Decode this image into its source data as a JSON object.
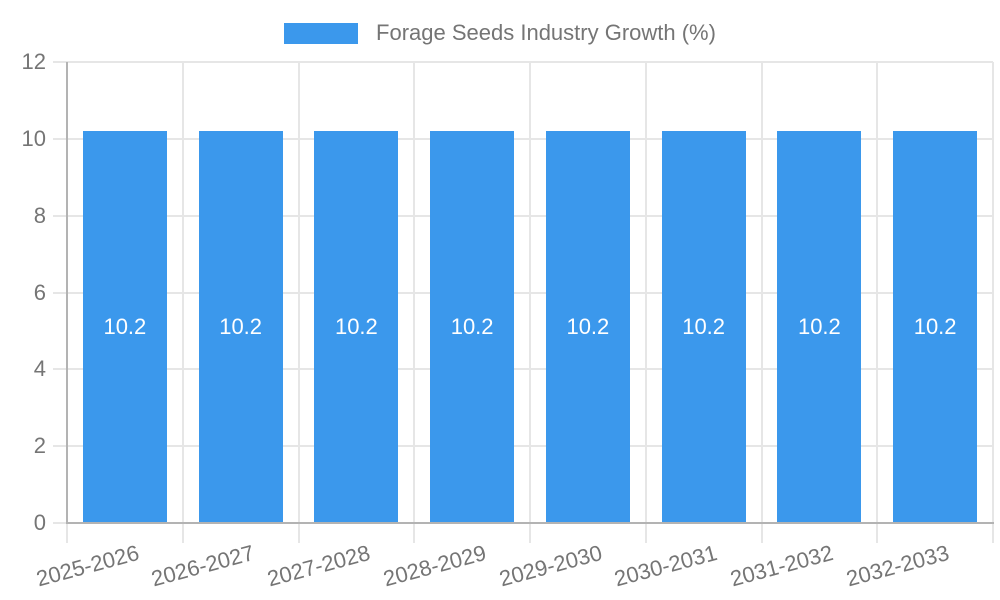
{
  "legend": {
    "label": "Forage Seeds Industry Growth (%)"
  },
  "chart_data": {
    "type": "bar",
    "title": "Forage Seeds Industry Growth (%)",
    "categories": [
      "2025-2026",
      "2026-2027",
      "2027-2028",
      "2028-2029",
      "2029-2030",
      "2030-2031",
      "2031-2032",
      "2032-2033"
    ],
    "series": [
      {
        "name": "Forage Seeds Industry Growth (%)",
        "values": [
          10.2,
          10.2,
          10.2,
          10.2,
          10.2,
          10.2,
          10.2,
          10.2
        ]
      }
    ],
    "bar_value_labels": [
      "10.2",
      "10.2",
      "10.2",
      "10.2",
      "10.2",
      "10.2",
      "10.2",
      "10.2"
    ],
    "xlabel": "",
    "ylabel": "",
    "ylim": [
      0,
      12
    ],
    "yticks": [
      0,
      2,
      4,
      6,
      8,
      10,
      12
    ],
    "grid": true,
    "legend_position": "top-center",
    "colors": {
      "bar": "#3B98EC",
      "gridline": "#E6E6E6",
      "axis": "#B3B3B3",
      "text": "#757575",
      "bar_label": "#FFFFFF",
      "background": "#FFFFFF"
    }
  }
}
